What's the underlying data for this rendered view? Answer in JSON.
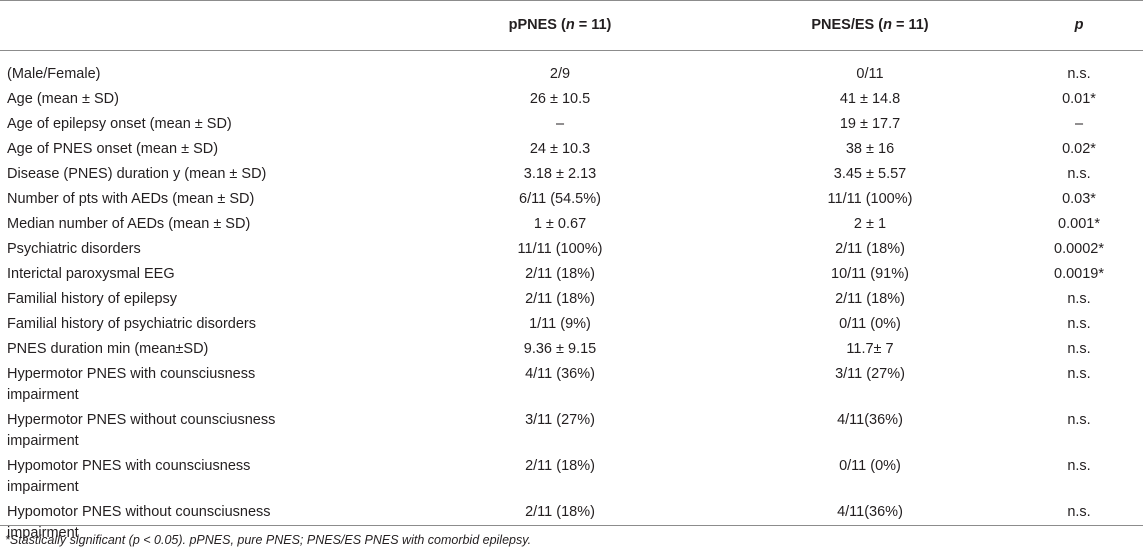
{
  "table": {
    "headers": {
      "col1": "",
      "col2_prefix": "pPNES (",
      "col2_n": "n",
      "col2_suffix": " = 11)",
      "col3_prefix": "PNES/ES (",
      "col3_n": "n",
      "col3_suffix": " = 11)",
      "col4": "p"
    },
    "rows": [
      {
        "label": "(Male/Female)",
        "ppnes": "2/9",
        "pnes_es": "0/11",
        "p": "n.s."
      },
      {
        "label": "Age (mean ± SD)",
        "ppnes": "26 ± 10.5",
        "pnes_es": "41 ± 14.8",
        "p": "0.01*"
      },
      {
        "label": "Age of epilepsy onset (mean ± SD)",
        "ppnes": "–",
        "pnes_es": "19 ± 17.7",
        "p": "–"
      },
      {
        "label": "Age of PNES onset (mean ± SD)",
        "ppnes": "24 ± 10.3",
        "pnes_es": "38 ± 16",
        "p": "0.02*"
      },
      {
        "label": "Disease (PNES) duration y (mean ± SD)",
        "ppnes": "3.18 ± 2.13",
        "pnes_es": "3.45 ± 5.57",
        "p": "n.s."
      },
      {
        "label": "Number of pts with AEDs (mean ± SD)",
        "ppnes": "6/11 (54.5%)",
        "pnes_es": "11/11 (100%)",
        "p": "0.03*"
      },
      {
        "label": "Median number of AEDs (mean ± SD)",
        "ppnes": "1 ± 0.67",
        "pnes_es": "2 ± 1",
        "p": "0.001*"
      },
      {
        "label": "Psychiatric disorders",
        "ppnes": "11/11 (100%)",
        "pnes_es": "2/11 (18%)",
        "p": "0.0002*"
      },
      {
        "label": "Interictal paroxysmal EEG",
        "ppnes": "2/11 (18%)",
        "pnes_es": "10/11 (91%)",
        "p": "0.0019*"
      },
      {
        "label": "Familial history of epilepsy",
        "ppnes": "2/11 (18%)",
        "pnes_es": "2/11 (18%)",
        "p": "n.s."
      },
      {
        "label": "Familial history of psychiatric disorders",
        "ppnes": "1/11 (9%)",
        "pnes_es": "0/11 (0%)",
        "p": "n.s."
      },
      {
        "label": "PNES duration min (mean±SD)",
        "ppnes": "9.36 ± 9.15",
        "pnes_es": "11.7± 7",
        "p": "n.s."
      },
      {
        "label": "Hypermotor PNES with counsciusness impairment",
        "ppnes": "4/11 (36%)",
        "pnes_es": "3/11 (27%)",
        "p": "n.s."
      },
      {
        "label": "Hypermotor PNES without counsciusness impairment",
        "ppnes": "3/11 (27%)",
        "pnes_es": "4/11(36%)",
        "p": "n.s."
      },
      {
        "label": "Hypomotor PNES with counsciusness impairment",
        "ppnes": "2/11 (18%)",
        "pnes_es": "0/11 (0%)",
        "p": "n.s."
      },
      {
        "label": "Hypomotor PNES without counsciusness impairment",
        "ppnes": "2/11 (18%)",
        "pnes_es": "4/11(36%)",
        "p": "n.s."
      }
    ]
  },
  "footnote": "*Stastically significant (p < 0.05). pPNES, pure PNES; PNES/ES PNES with comorbid epilepsy.",
  "colors": {
    "text": "#231f20",
    "rule": "#8c8c8c"
  }
}
